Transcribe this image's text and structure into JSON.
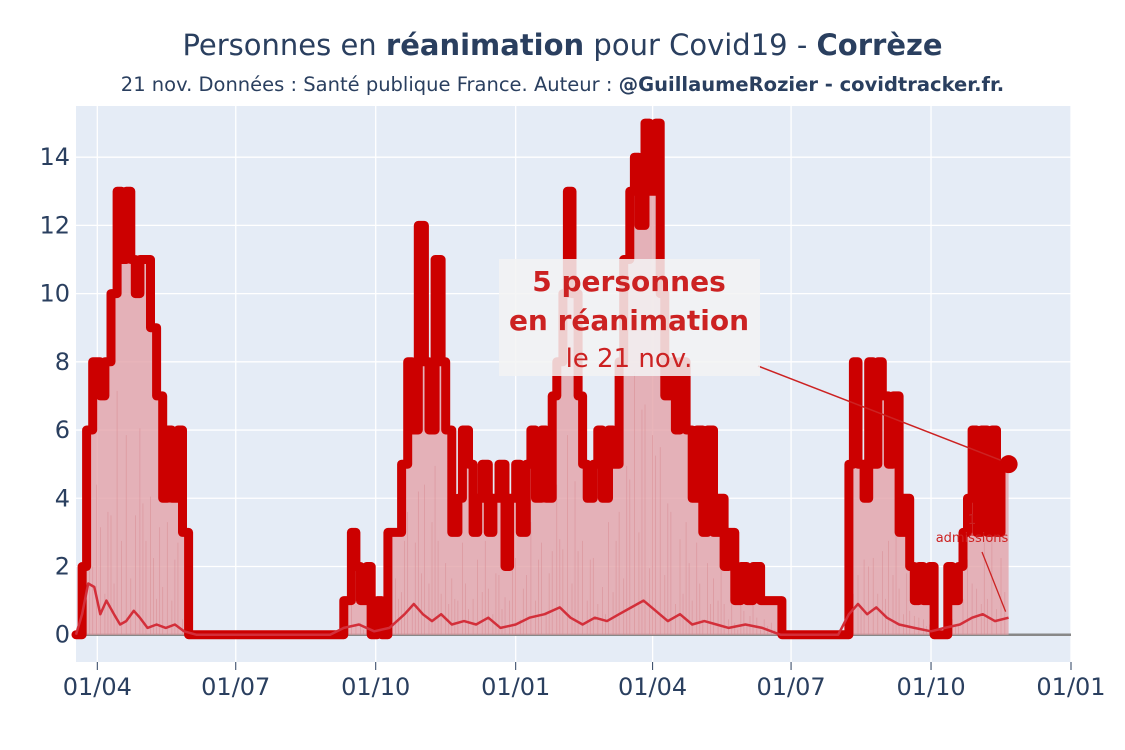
{
  "header": {
    "title_parts": [
      {
        "text": "Personnes en ",
        "bold": false
      },
      {
        "text": "réanimation",
        "bold": true
      },
      {
        "text": " pour Covid19 - ",
        "bold": false
      },
      {
        "text": "Corrèze",
        "bold": true
      }
    ],
    "subtitle_parts": [
      {
        "text": "21 nov. Données : Santé publique France. Auteur : ",
        "bold": false
      },
      {
        "text": "@GuillaumeRozier - covidtracker.fr.",
        "bold": true
      }
    ]
  },
  "chart_data": {
    "type": "line",
    "title": "Personnes en réanimation pour Covid19 - Corrèze",
    "xlim": [
      "2020-03-18",
      "2022-01-01"
    ],
    "ylim": [
      -0.8,
      15.5
    ],
    "yticks": [
      0,
      2,
      4,
      6,
      8,
      10,
      12,
      14
    ],
    "xticks": [
      {
        "date": "2020-04-01",
        "label": "01/04"
      },
      {
        "date": "2020-07-01",
        "label": "01/07"
      },
      {
        "date": "2020-10-01",
        "label": "01/10"
      },
      {
        "date": "2021-01-01",
        "label": "01/01"
      },
      {
        "date": "2021-04-01",
        "label": "01/04"
      },
      {
        "date": "2021-07-01",
        "label": "01/07"
      },
      {
        "date": "2021-10-01",
        "label": "01/10"
      },
      {
        "date": "2022-01-01",
        "label": "01/01"
      }
    ],
    "grid": true,
    "colors": {
      "plot_bg": "#e5ecf6",
      "main_line": "#cc0000",
      "area_fill": "#e3a3a9",
      "admissions": "#d32f3a",
      "zero_line": "#888888",
      "annotation_bg": "#f3f3f3"
    },
    "series": [
      {
        "role": "reanimation",
        "points": [
          [
            "2020-03-18",
            0
          ],
          [
            "2020-03-22",
            2
          ],
          [
            "2020-03-25",
            6
          ],
          [
            "2020-03-29",
            8
          ],
          [
            "2020-04-03",
            7
          ],
          [
            "2020-04-06",
            8
          ],
          [
            "2020-04-10",
            10
          ],
          [
            "2020-04-14",
            13
          ],
          [
            "2020-04-17",
            11
          ],
          [
            "2020-04-20",
            13
          ],
          [
            "2020-04-23",
            11
          ],
          [
            "2020-04-26",
            10
          ],
          [
            "2020-04-29",
            11
          ],
          [
            "2020-05-03",
            11
          ],
          [
            "2020-05-06",
            9
          ],
          [
            "2020-05-10",
            7
          ],
          [
            "2020-05-14",
            4
          ],
          [
            "2020-05-17",
            6
          ],
          [
            "2020-05-20",
            4
          ],
          [
            "2020-05-24",
            6
          ],
          [
            "2020-05-27",
            3
          ],
          [
            "2020-05-31",
            0
          ],
          [
            "2020-09-07",
            0
          ],
          [
            "2020-09-10",
            1
          ],
          [
            "2020-09-15",
            3
          ],
          [
            "2020-09-18",
            2
          ],
          [
            "2020-09-21",
            1
          ],
          [
            "2020-09-25",
            2
          ],
          [
            "2020-09-28",
            0
          ],
          [
            "2020-10-02",
            1
          ],
          [
            "2020-10-05",
            0
          ],
          [
            "2020-10-09",
            3
          ],
          [
            "2020-10-14",
            3
          ],
          [
            "2020-10-18",
            5
          ],
          [
            "2020-10-22",
            8
          ],
          [
            "2020-10-25",
            6
          ],
          [
            "2020-10-29",
            12
          ],
          [
            "2020-11-02",
            8
          ],
          [
            "2020-11-05",
            6
          ],
          [
            "2020-11-09",
            11
          ],
          [
            "2020-11-13",
            8
          ],
          [
            "2020-11-16",
            6
          ],
          [
            "2020-11-20",
            3
          ],
          [
            "2020-11-24",
            4
          ],
          [
            "2020-11-27",
            6
          ],
          [
            "2020-12-01",
            5
          ],
          [
            "2020-12-04",
            3
          ],
          [
            "2020-12-07",
            4
          ],
          [
            "2020-12-10",
            5
          ],
          [
            "2020-12-14",
            3
          ],
          [
            "2020-12-17",
            4
          ],
          [
            "2020-12-21",
            5
          ],
          [
            "2020-12-25",
            2
          ],
          [
            "2020-12-28",
            4
          ],
          [
            "2021-01-01",
            5
          ],
          [
            "2021-01-04",
            3
          ],
          [
            "2021-01-08",
            5
          ],
          [
            "2021-01-11",
            6
          ],
          [
            "2021-01-14",
            4
          ],
          [
            "2021-01-18",
            6
          ],
          [
            "2021-01-21",
            4
          ],
          [
            "2021-01-25",
            7
          ],
          [
            "2021-01-28",
            8
          ],
          [
            "2021-02-01",
            10
          ],
          [
            "2021-02-04",
            13
          ],
          [
            "2021-02-07",
            10
          ],
          [
            "2021-02-11",
            7
          ],
          [
            "2021-02-14",
            5
          ],
          [
            "2021-02-17",
            4
          ],
          [
            "2021-02-21",
            5
          ],
          [
            "2021-02-24",
            6
          ],
          [
            "2021-02-27",
            4
          ],
          [
            "2021-03-03",
            6
          ],
          [
            "2021-03-06",
            5
          ],
          [
            "2021-03-10",
            8
          ],
          [
            "2021-03-13",
            11
          ],
          [
            "2021-03-17",
            13
          ],
          [
            "2021-03-20",
            14
          ],
          [
            "2021-03-23",
            12
          ],
          [
            "2021-03-27",
            15
          ],
          [
            "2021-03-30",
            13
          ],
          [
            "2021-04-03",
            15
          ],
          [
            "2021-04-06",
            10
          ],
          [
            "2021-04-09",
            7
          ],
          [
            "2021-04-13",
            8
          ],
          [
            "2021-04-16",
            6
          ],
          [
            "2021-04-19",
            8
          ],
          [
            "2021-04-23",
            6
          ],
          [
            "2021-04-27",
            4
          ],
          [
            "2021-04-30",
            6
          ],
          [
            "2021-05-04",
            3
          ],
          [
            "2021-05-07",
            6
          ],
          [
            "2021-05-11",
            3
          ],
          [
            "2021-05-14",
            4
          ],
          [
            "2021-05-18",
            2
          ],
          [
            "2021-05-21",
            3
          ],
          [
            "2021-05-25",
            1
          ],
          [
            "2021-05-29",
            2
          ],
          [
            "2021-06-02",
            1
          ],
          [
            "2021-06-06",
            2
          ],
          [
            "2021-06-11",
            1
          ],
          [
            "2021-06-18",
            1
          ],
          [
            "2021-06-25",
            0
          ],
          [
            "2021-08-04",
            0
          ],
          [
            "2021-08-08",
            5
          ],
          [
            "2021-08-11",
            8
          ],
          [
            "2021-08-14",
            5
          ],
          [
            "2021-08-18",
            4
          ],
          [
            "2021-08-21",
            8
          ],
          [
            "2021-08-24",
            5
          ],
          [
            "2021-08-27",
            8
          ],
          [
            "2021-08-30",
            7
          ],
          [
            "2021-09-03",
            5
          ],
          [
            "2021-09-06",
            7
          ],
          [
            "2021-09-10",
            3
          ],
          [
            "2021-09-13",
            4
          ],
          [
            "2021-09-17",
            2
          ],
          [
            "2021-09-20",
            1
          ],
          [
            "2021-09-23",
            2
          ],
          [
            "2021-09-26",
            1
          ],
          [
            "2021-09-30",
            2
          ],
          [
            "2021-10-03",
            0
          ],
          [
            "2021-10-09",
            0
          ],
          [
            "2021-10-12",
            2
          ],
          [
            "2021-10-15",
            1
          ],
          [
            "2021-10-19",
            2
          ],
          [
            "2021-10-22",
            3
          ],
          [
            "2021-10-25",
            4
          ],
          [
            "2021-10-28",
            6
          ],
          [
            "2021-10-31",
            3
          ],
          [
            "2021-11-03",
            6
          ],
          [
            "2021-11-07",
            3
          ],
          [
            "2021-11-10",
            6
          ],
          [
            "2021-11-13",
            3
          ],
          [
            "2021-11-16",
            5
          ],
          [
            "2021-11-21",
            5
          ]
        ]
      },
      {
        "role": "admissions",
        "points": [
          [
            "2020-03-18",
            0
          ],
          [
            "2020-03-22",
            0.6
          ],
          [
            "2020-03-26",
            1.5
          ],
          [
            "2020-03-30",
            1.4
          ],
          [
            "2020-04-03",
            0.6
          ],
          [
            "2020-04-07",
            1.0
          ],
          [
            "2020-04-12",
            0.6
          ],
          [
            "2020-04-16",
            0.3
          ],
          [
            "2020-04-20",
            0.4
          ],
          [
            "2020-04-25",
            0.7
          ],
          [
            "2020-04-29",
            0.5
          ],
          [
            "2020-05-04",
            0.2
          ],
          [
            "2020-05-10",
            0.3
          ],
          [
            "2020-05-16",
            0.2
          ],
          [
            "2020-05-22",
            0.3
          ],
          [
            "2020-05-28",
            0.1
          ],
          [
            "2020-06-05",
            0
          ],
          [
            "2020-09-01",
            0
          ],
          [
            "2020-09-10",
            0.2
          ],
          [
            "2020-09-20",
            0.3
          ],
          [
            "2020-09-30",
            0.1
          ],
          [
            "2020-10-10",
            0.2
          ],
          [
            "2020-10-20",
            0.6
          ],
          [
            "2020-10-26",
            0.9
          ],
          [
            "2020-11-01",
            0.6
          ],
          [
            "2020-11-07",
            0.4
          ],
          [
            "2020-11-13",
            0.6
          ],
          [
            "2020-11-20",
            0.3
          ],
          [
            "2020-11-28",
            0.4
          ],
          [
            "2020-12-06",
            0.3
          ],
          [
            "2020-12-14",
            0.5
          ],
          [
            "2020-12-22",
            0.2
          ],
          [
            "2021-01-01",
            0.3
          ],
          [
            "2021-01-10",
            0.5
          ],
          [
            "2021-01-20",
            0.6
          ],
          [
            "2021-01-30",
            0.8
          ],
          [
            "2021-02-06",
            0.5
          ],
          [
            "2021-02-14",
            0.3
          ],
          [
            "2021-02-22",
            0.5
          ],
          [
            "2021-03-02",
            0.4
          ],
          [
            "2021-03-10",
            0.6
          ],
          [
            "2021-03-18",
            0.8
          ],
          [
            "2021-03-26",
            1.0
          ],
          [
            "2021-04-03",
            0.7
          ],
          [
            "2021-04-11",
            0.4
          ],
          [
            "2021-04-19",
            0.6
          ],
          [
            "2021-04-27",
            0.3
          ],
          [
            "2021-05-05",
            0.4
          ],
          [
            "2021-05-13",
            0.3
          ],
          [
            "2021-05-21",
            0.2
          ],
          [
            "2021-06-01",
            0.3
          ],
          [
            "2021-06-12",
            0.2
          ],
          [
            "2021-06-24",
            0
          ],
          [
            "2021-08-01",
            0
          ],
          [
            "2021-08-08",
            0.6
          ],
          [
            "2021-08-14",
            0.9
          ],
          [
            "2021-08-20",
            0.6
          ],
          [
            "2021-08-26",
            0.8
          ],
          [
            "2021-09-02",
            0.5
          ],
          [
            "2021-09-10",
            0.3
          ],
          [
            "2021-09-20",
            0.2
          ],
          [
            "2021-10-01",
            0.1
          ],
          [
            "2021-10-10",
            0.2
          ],
          [
            "2021-10-20",
            0.3
          ],
          [
            "2021-10-28",
            0.5
          ],
          [
            "2021-11-04",
            0.6
          ],
          [
            "2021-11-12",
            0.4
          ],
          [
            "2021-11-21",
            0.5
          ]
        ]
      }
    ],
    "last_point": {
      "date": "2021-11-21",
      "value": 5
    },
    "annotation_main": {
      "line1": "5 personnes",
      "line2": "en réanimation",
      "line3": "le 21 nov.",
      "color": "#cc2222"
    },
    "annotation_admissions": {
      "line1": "1",
      "line2": "admissions",
      "color": "#cc2222",
      "target": {
        "date": "2021-11-21",
        "value": 0.5
      }
    }
  }
}
